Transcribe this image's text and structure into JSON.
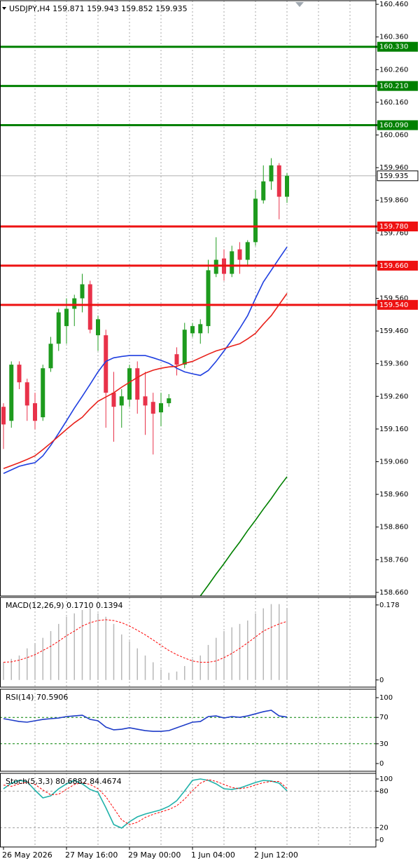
{
  "chart_data": [
    {
      "type": "candlestick",
      "title": "USDJPY,H4  159.871 159.943 159.852 159.935",
      "categories": [
        "26 May 2026",
        null,
        null,
        null,
        null,
        null,
        null,
        null,
        "27 May 16:00",
        null,
        null,
        null,
        null,
        null,
        null,
        null,
        "29 May 00:00",
        null,
        null,
        null,
        null,
        null,
        null,
        null,
        "1 Jun 04:00",
        null,
        null,
        null,
        null,
        null,
        null,
        null,
        "2 Jun 12:00",
        null,
        null,
        null,
        null
      ],
      "open": [
        159.228,
        159.185,
        159.357,
        159.303,
        159.239,
        159.196,
        159.346,
        159.421,
        159.475,
        159.528,
        159.56,
        159.603,
        159.447,
        159.447,
        159.271,
        159.232,
        159.25,
        159.346,
        159.26,
        159.243,
        159.211,
        159.239,
        159.389,
        159.357,
        159.453,
        159.453,
        159.475,
        159.635,
        159.682,
        159.635,
        159.71,
        159.678,
        159.732,
        159.86,
        159.918,
        159.967,
        159.871
      ],
      "high": [
        159.239,
        159.367,
        159.367,
        159.314,
        159.271,
        159.357,
        159.442,
        159.528,
        159.56,
        159.571,
        159.635,
        159.614,
        159.507,
        159.464,
        159.335,
        159.282,
        159.357,
        159.367,
        159.335,
        159.271,
        159.271,
        159.267,
        159.41,
        159.485,
        159.485,
        159.496,
        159.678,
        159.747,
        159.71,
        159.721,
        159.732,
        159.738,
        159.892,
        159.967,
        159.989,
        159.974,
        159.943
      ],
      "low": [
        159.099,
        159.164,
        159.282,
        159.185,
        159.159,
        159.185,
        159.335,
        159.399,
        159.421,
        159.475,
        159.517,
        159.453,
        159.399,
        159.164,
        159.121,
        159.164,
        159.228,
        159.207,
        159.142,
        159.082,
        159.168,
        159.228,
        159.324,
        159.346,
        159.442,
        159.421,
        159.453,
        159.625,
        159.614,
        159.625,
        159.635,
        159.657,
        159.721,
        159.85,
        159.892,
        159.802,
        159.852
      ],
      "close": [
        159.174,
        159.357,
        159.303,
        159.232,
        159.185,
        159.346,
        159.421,
        159.517,
        159.528,
        159.56,
        159.603,
        159.464,
        159.496,
        159.271,
        159.228,
        159.26,
        159.346,
        159.25,
        159.232,
        159.207,
        159.239,
        159.254,
        159.357,
        159.464,
        159.475,
        159.481,
        159.646,
        159.678,
        159.635,
        159.704,
        159.678,
        159.732,
        159.865,
        159.918,
        159.967,
        159.871,
        159.935
      ],
      "up_color": "#1e9b1e",
      "down_color": "#e8324a",
      "series": [
        {
          "color": "#1f3fe0",
          "values": [
            159.024,
            159.035,
            159.046,
            159.052,
            159.057,
            159.078,
            159.11,
            159.147,
            159.185,
            159.224,
            159.26,
            159.297,
            159.335,
            159.367,
            159.378,
            159.382,
            159.385,
            159.385,
            159.385,
            159.378,
            159.37,
            159.361,
            159.346,
            159.335,
            159.329,
            159.324,
            159.339,
            159.367,
            159.399,
            159.432,
            159.468,
            159.507,
            159.56,
            159.61,
            159.646,
            159.682,
            159.717
          ]
        },
        {
          "color": "#e8201a",
          "values": [
            159.039,
            159.048,
            159.057,
            159.067,
            159.078,
            159.097,
            159.117,
            159.138,
            159.159,
            159.179,
            159.196,
            159.222,
            159.245,
            159.258,
            159.271,
            159.288,
            159.303,
            159.318,
            159.331,
            159.34,
            159.346,
            159.35,
            159.352,
            159.361,
            159.367,
            159.378,
            159.389,
            159.399,
            159.406,
            159.414,
            159.421,
            159.436,
            159.453,
            159.481,
            159.507,
            159.541,
            159.575
          ]
        },
        {
          "color": "#008000",
          "values": [
            null,
            null,
            null,
            null,
            null,
            null,
            null,
            null,
            null,
            null,
            null,
            null,
            null,
            null,
            null,
            null,
            null,
            null,
            null,
            null,
            null,
            null,
            null,
            null,
            null,
            158.649,
            158.682,
            158.716,
            158.748,
            158.782,
            158.814,
            158.849,
            158.881,
            158.915,
            158.947,
            158.982,
            159.014
          ]
        }
      ],
      "levels": [
        {
          "value": 160.33,
          "label": "160.330",
          "color": "#008000"
        },
        {
          "value": 160.21,
          "label": "160.210",
          "color": "#008000"
        },
        {
          "value": 160.09,
          "label": "160.090",
          "color": "#008000"
        },
        {
          "value": 159.78,
          "label": "159.780",
          "color": "#ee1111"
        },
        {
          "value": 159.66,
          "label": "159.660",
          "color": "#ee1111"
        },
        {
          "value": 159.54,
          "label": "159.540",
          "color": "#ee1111"
        }
      ],
      "current_price": 159.935,
      "ylim": [
        158.649,
        160.471
      ],
      "yticks": [
        {
          "value": 160.46,
          "label": "160.460"
        },
        {
          "value": 160.36,
          "label": "160.360"
        },
        {
          "value": 160.26,
          "label": "160.260"
        },
        {
          "value": 160.16,
          "label": "160.160"
        },
        {
          "value": 160.06,
          "label": "160.060"
        },
        {
          "value": 159.96,
          "label": "159.960"
        },
        {
          "value": 159.86,
          "label": "159.860"
        },
        {
          "value": 159.76,
          "label": "159.760"
        },
        {
          "value": 159.66,
          "label": "159.660"
        },
        {
          "value": 159.56,
          "label": "159.560"
        },
        {
          "value": 159.46,
          "label": "159.460"
        },
        {
          "value": 159.36,
          "label": "159.360"
        },
        {
          "value": 159.26,
          "label": "159.260"
        },
        {
          "value": 159.16,
          "label": "159.160"
        },
        {
          "value": 159.06,
          "label": "159.060"
        },
        {
          "value": 158.96,
          "label": "158.960"
        },
        {
          "value": 158.86,
          "label": "158.860"
        },
        {
          "value": 158.76,
          "label": "158.760"
        },
        {
          "value": 158.66,
          "label": "158.660"
        }
      ]
    },
    {
      "type": "bar",
      "title": "MACD(12,26,9) 0.1710 0.1394",
      "series": [
        {
          "style": "bar",
          "color": "#b8b8b8",
          "values": [
            0.042,
            0.05,
            0.058,
            0.075,
            0.087,
            0.1,
            0.116,
            0.133,
            0.15,
            0.158,
            0.166,
            0.17,
            0.158,
            0.15,
            0.133,
            0.108,
            0.092,
            0.075,
            0.058,
            0.042,
            0.025,
            0.017,
            0.02,
            0.033,
            0.05,
            0.058,
            0.083,
            0.1,
            0.116,
            0.125,
            0.133,
            0.141,
            0.158,
            0.17,
            0.18,
            0.18,
            0.171
          ]
        },
        {
          "style": "dashed",
          "color": "#ff0000",
          "values": [
            0.042,
            0.043,
            0.047,
            0.053,
            0.06,
            0.07,
            0.08,
            0.092,
            0.105,
            0.116,
            0.128,
            0.136,
            0.141,
            0.143,
            0.141,
            0.136,
            0.128,
            0.118,
            0.107,
            0.095,
            0.082,
            0.07,
            0.06,
            0.052,
            0.045,
            0.042,
            0.042,
            0.045,
            0.053,
            0.063,
            0.075,
            0.088,
            0.102,
            0.116,
            0.125,
            0.133,
            0.139
          ]
        }
      ],
      "ylim": [
        -0.017,
        0.196
      ],
      "yticks": [
        0,
        0.178
      ]
    },
    {
      "type": "line",
      "title": "RSI(14) 70.5906",
      "series": [
        {
          "style": "line",
          "color": "#1e3cc8",
          "values": [
            68.1,
            66.0,
            63.8,
            62.8,
            64.9,
            67.0,
            68.1,
            69.1,
            71.3,
            72.3,
            73.4,
            67.0,
            64.9,
            55.3,
            51.1,
            52.1,
            54.3,
            52.1,
            50.0,
            48.9,
            48.9,
            50.0,
            54.3,
            58.5,
            62.8,
            63.8,
            71.3,
            72.3,
            69.1,
            71.3,
            70.2,
            72.3,
            75.5,
            78.7,
            80.9,
            72.3,
            70.6
          ]
        }
      ],
      "levels": [
        70,
        30
      ],
      "level_color": "#008000",
      "ylim": [
        -11.7,
        112.8
      ],
      "yticks": [
        100,
        70,
        30,
        0
      ]
    },
    {
      "type": "line",
      "title": "Stoch(5,3,3) 80.6882 84.4674",
      "series": [
        {
          "style": "line",
          "color": "#20b2aa",
          "values": [
            83.9,
            93.1,
            97.7,
            95.4,
            81.6,
            69.0,
            72.4,
            83.9,
            92.0,
            97.7,
            92.0,
            82.8,
            78.2,
            52.9,
            25.3,
            19.5,
            29.9,
            37.9,
            42.5,
            46.0,
            49.4,
            55.2,
            64.4,
            80.5,
            97.7,
            100,
            97.7,
            92.0,
            83.9,
            82.8,
            85.1,
            89.7,
            94.3,
            97.7,
            96.6,
            93.1,
            80.7
          ]
        },
        {
          "style": "dashed",
          "color": "#ff0000",
          "values": [
            90,
            88,
            92,
            95,
            91,
            82,
            74,
            75,
            83,
            91,
            94,
            91,
            84,
            71,
            52,
            33,
            25,
            29,
            37,
            42,
            46,
            50,
            56,
            67,
            81,
            93,
            99,
            96,
            91,
            86,
            84,
            86,
            90,
            94,
            96,
            96,
            84.5
          ]
        }
      ],
      "levels": [
        80,
        20
      ],
      "level_color": "#a0a0a0",
      "ylim": [
        -11.5,
        109.2
      ],
      "yticks": [
        100,
        80,
        20,
        0
      ]
    }
  ]
}
